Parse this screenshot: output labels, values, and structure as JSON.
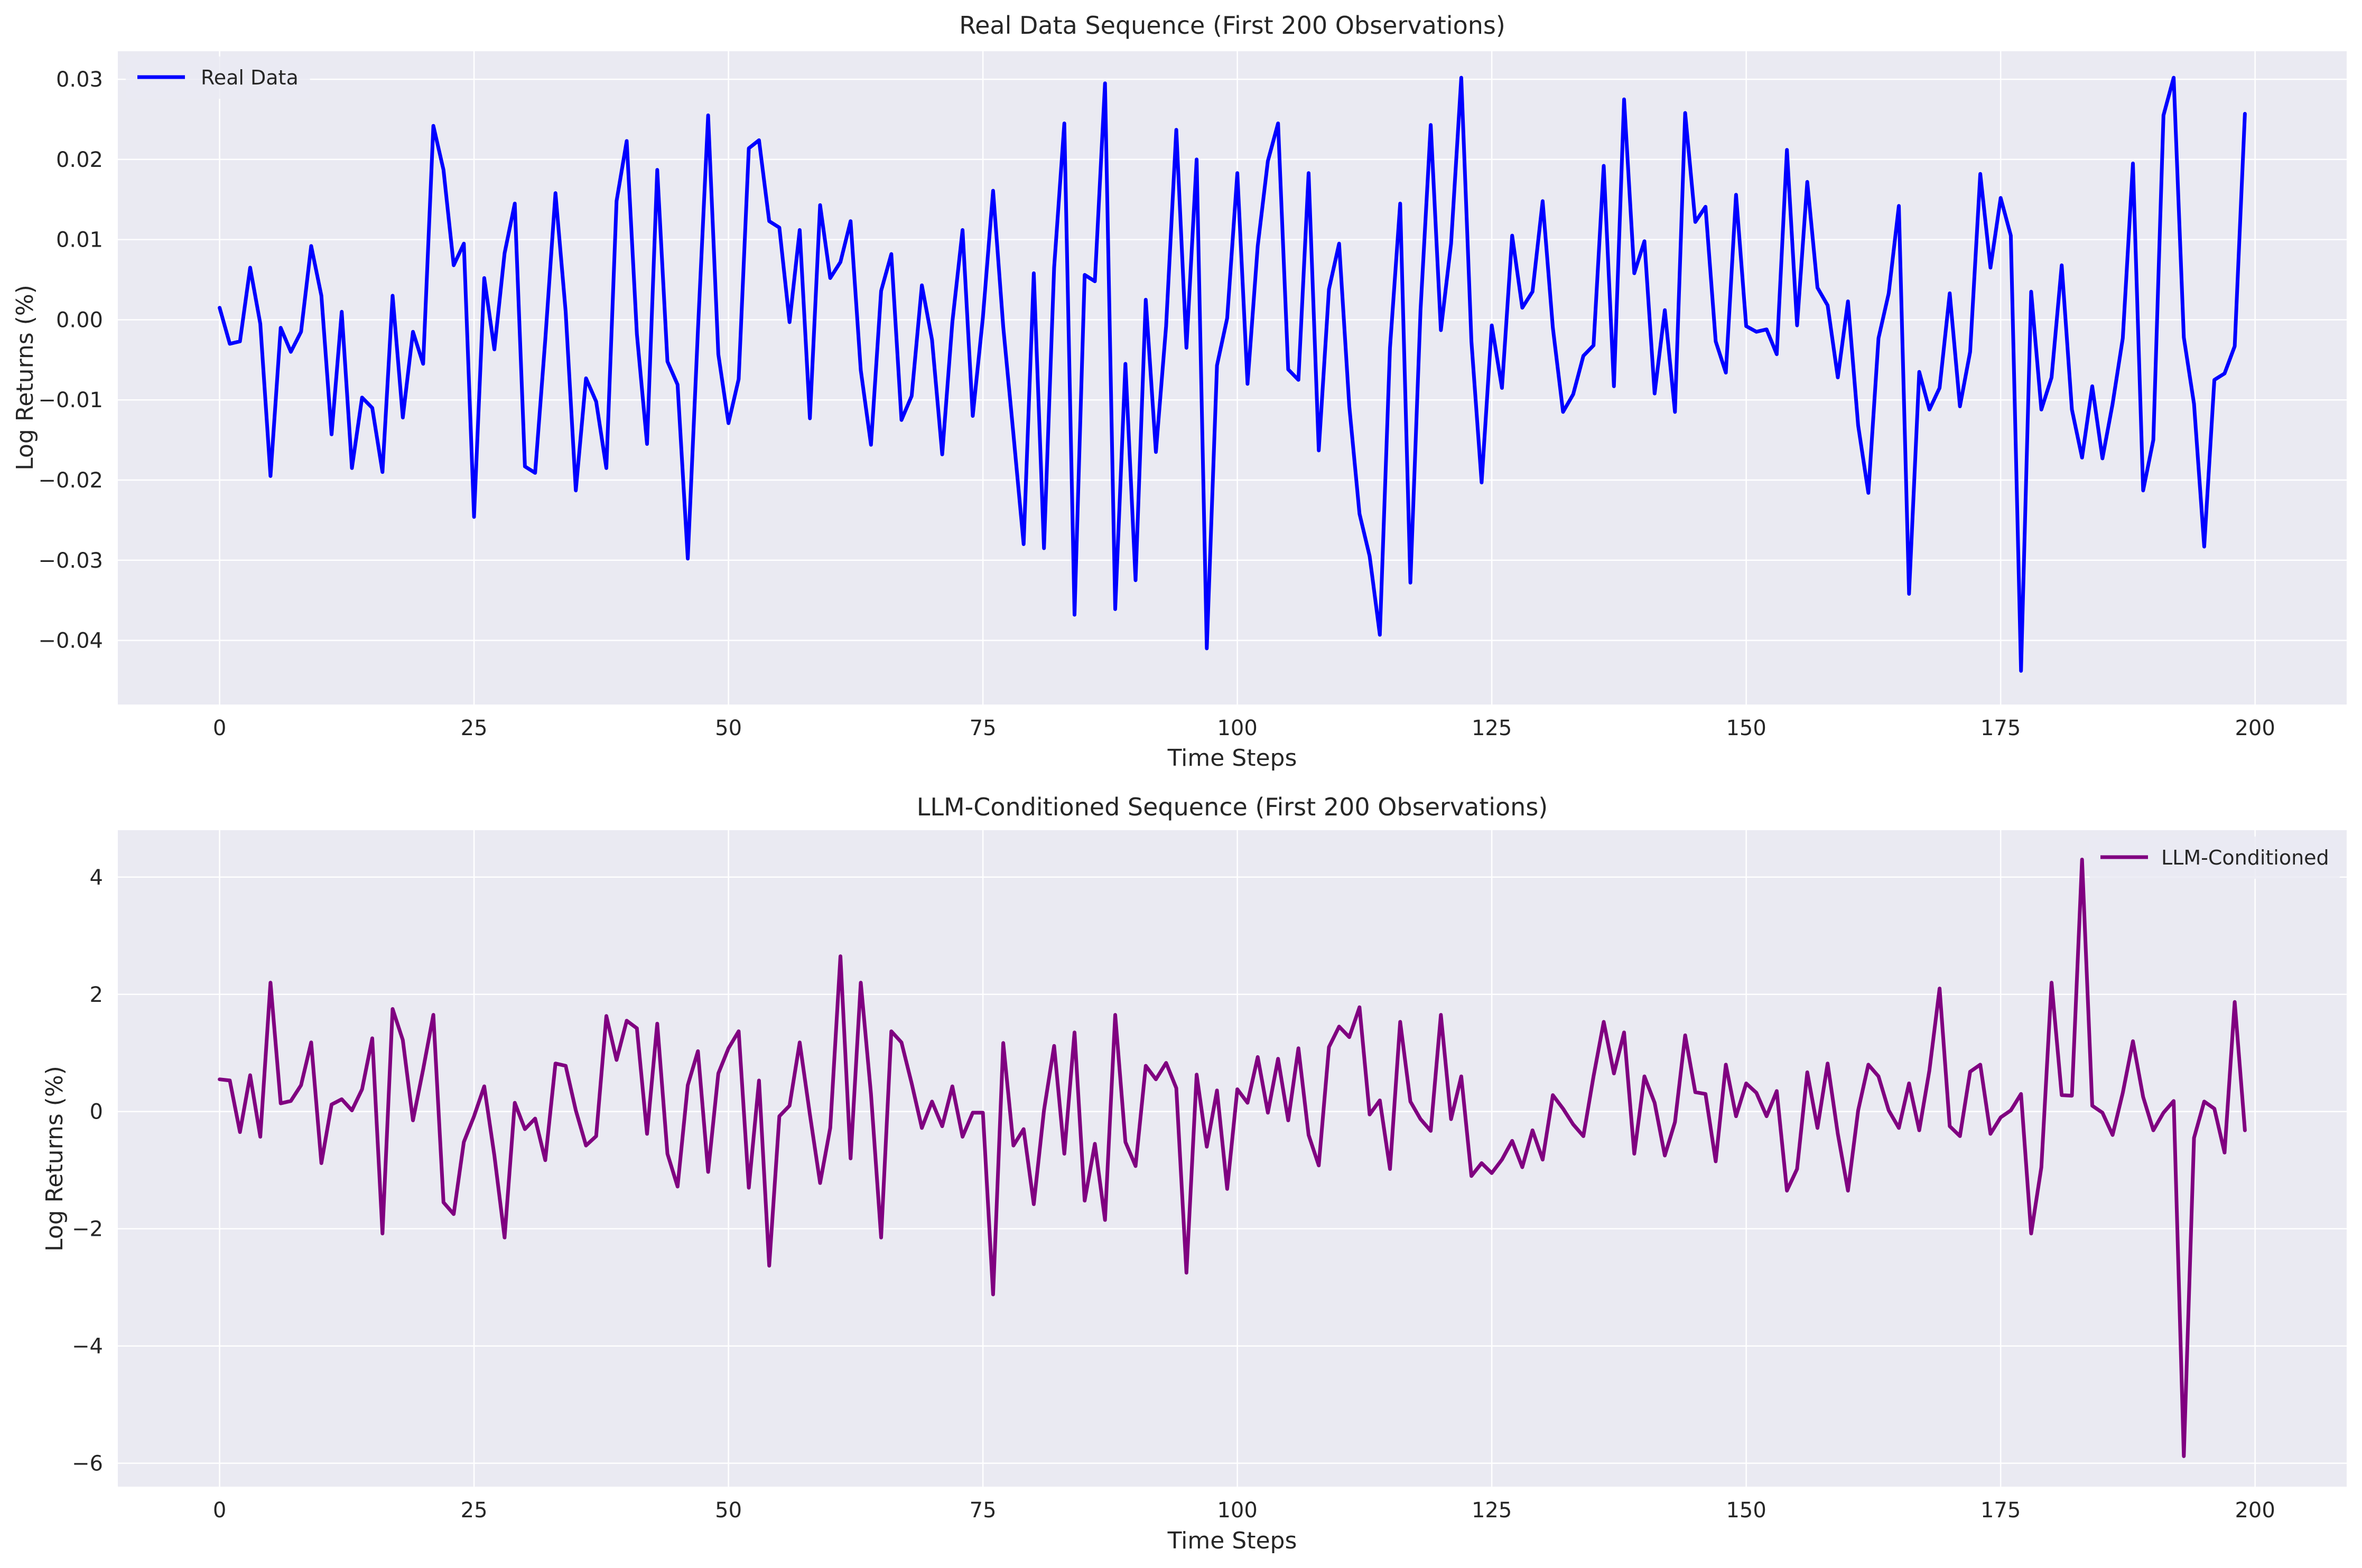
{
  "chart_data": [
    {
      "type": "line",
      "title": "Real Data Sequence (First 200 Observations)",
      "xlabel": "Time Steps",
      "ylabel": "Log Returns (%)",
      "xlim": [
        -10,
        209
      ],
      "ylim": [
        -0.048,
        0.0335
      ],
      "xticks": [
        0,
        25,
        50,
        75,
        100,
        125,
        150,
        175,
        200
      ],
      "yticks": [
        -0.04,
        -0.03,
        -0.02,
        -0.01,
        0.0,
        0.01,
        0.02,
        0.03
      ],
      "ytick_labels": [
        "−0.04",
        "−0.03",
        "−0.02",
        "−0.01",
        "0.00",
        "0.01",
        "0.02",
        "0.03"
      ],
      "grid": true,
      "legend_position": "upper-left",
      "series": [
        {
          "name": "Real Data",
          "color": "#0000ff",
          "values": [
            0.0015,
            -0.003,
            -0.0027,
            0.0065,
            -0.0005,
            -0.0195,
            -0.001,
            -0.004,
            -0.0015,
            0.0092,
            0.003,
            -0.0143,
            0.001,
            -0.0185,
            -0.0097,
            -0.011,
            -0.019,
            0.003,
            -0.0122,
            -0.0015,
            -0.0055,
            0.0242,
            0.0187,
            0.0068,
            0.0095,
            -0.0246,
            0.0052,
            -0.0037,
            0.0083,
            0.0145,
            -0.0183,
            -0.0191,
            -0.0025,
            0.0158,
            0.001,
            -0.0213,
            -0.0073,
            -0.0102,
            -0.0185,
            0.0148,
            0.0223,
            -0.0018,
            -0.0155,
            0.0187,
            -0.0052,
            -0.0081,
            -0.0298,
            -0.0013,
            0.0255,
            -0.0043,
            -0.0129,
            -0.0074,
            0.0214,
            0.0224,
            0.0123,
            0.0115,
            -0.0003,
            0.0112,
            -0.0123,
            0.0143,
            0.0052,
            0.0072,
            0.0123,
            -0.0063,
            -0.0156,
            0.0036,
            0.0082,
            -0.0125,
            -0.0095,
            0.0043,
            -0.0025,
            -0.0168,
            -0.0003,
            0.0112,
            -0.012,
            0.0003,
            0.0161,
            -0.0009,
            -0.0143,
            -0.028,
            0.0058,
            -0.0285,
            0.0065,
            0.0245,
            -0.0368,
            0.0056,
            0.0048,
            0.0295,
            -0.0361,
            -0.0055,
            -0.0325,
            0.0025,
            -0.0165,
            -0.0008,
            0.0237,
            -0.0035,
            0.02,
            -0.041,
            -0.0057,
            0.0002,
            0.0183,
            -0.008,
            0.0092,
            0.0198,
            0.0245,
            -0.0062,
            -0.0075,
            0.0183,
            -0.0163,
            0.0038,
            0.0095,
            -0.0108,
            -0.0242,
            -0.0295,
            -0.0393,
            -0.0035,
            0.0145,
            -0.0328,
            0.0012,
            0.0243,
            -0.0013,
            0.0095,
            0.0302,
            -0.0027,
            -0.0203,
            -0.0007,
            -0.0085,
            0.0105,
            0.0015,
            0.0035,
            0.0148,
            -0.001,
            -0.0115,
            -0.0093,
            -0.0045,
            -0.0032,
            0.0192,
            -0.0083,
            0.0275,
            0.0058,
            0.0098,
            -0.0092,
            0.0012,
            -0.0115,
            0.0258,
            0.0122,
            0.0141,
            -0.0027,
            -0.0066,
            0.0156,
            -0.0008,
            -0.0015,
            -0.0012,
            -0.0043,
            0.0212,
            -0.0007,
            0.0172,
            0.004,
            0.0018,
            -0.0072,
            0.0023,
            -0.0132,
            -0.0216,
            -0.0023,
            0.0033,
            0.0142,
            -0.0342,
            -0.0065,
            -0.0112,
            -0.0085,
            0.0033,
            -0.0108,
            -0.004,
            0.0182,
            0.0065,
            0.0152,
            0.0105,
            -0.0438,
            0.0035,
            -0.0112,
            -0.0072,
            0.0068,
            -0.0112,
            -0.0172,
            -0.0083,
            -0.0173,
            -0.0105,
            -0.0023,
            0.0195,
            -0.0213,
            -0.015,
            0.0255,
            0.0302,
            -0.0022,
            -0.0105,
            -0.0283,
            -0.0075,
            -0.0067,
            -0.0033,
            0.0257
          ]
        }
      ]
    },
    {
      "type": "line",
      "title": "LLM-Conditioned Sequence (First 200 Observations)",
      "xlabel": "Time Steps",
      "ylabel": "Log Returns (%)",
      "xlim": [
        -10,
        209
      ],
      "ylim": [
        -6.4,
        4.8
      ],
      "xticks": [
        0,
        25,
        50,
        75,
        100,
        125,
        150,
        175,
        200
      ],
      "yticks": [
        -6,
        -4,
        -2,
        0,
        2,
        4
      ],
      "ytick_labels": [
        "−6",
        "−4",
        "−2",
        "0",
        "2",
        "4"
      ],
      "grid": true,
      "legend_position": "upper-right",
      "series": [
        {
          "name": "LLM-Conditioned",
          "color": "#800080",
          "values": [
            0.55,
            0.53,
            -0.35,
            0.62,
            -0.43,
            2.2,
            0.14,
            0.18,
            0.45,
            1.18,
            -0.88,
            0.12,
            0.21,
            0.02,
            0.38,
            1.25,
            -2.08,
            1.75,
            1.22,
            -0.15,
            0.72,
            1.65,
            -1.55,
            -1.75,
            -0.52,
            -0.08,
            0.43,
            -0.75,
            -2.15,
            0.15,
            -0.3,
            -0.12,
            -0.83,
            0.82,
            0.78,
            0.02,
            -0.58,
            -0.42,
            1.63,
            0.88,
            1.55,
            1.42,
            -0.38,
            1.5,
            -0.72,
            -1.28,
            0.45,
            1.03,
            -1.03,
            0.65,
            1.08,
            1.37,
            -1.3,
            0.53,
            -2.63,
            -0.08,
            0.1,
            1.18,
            -0.05,
            -1.22,
            -0.28,
            2.65,
            -0.8,
            2.2,
            0.3,
            -2.15,
            1.37,
            1.18,
            0.48,
            -0.28,
            0.17,
            -0.25,
            0.43,
            -0.43,
            -0.02,
            -0.02,
            -3.12,
            1.17,
            -0.58,
            -0.3,
            -1.58,
            0.02,
            1.12,
            -0.72,
            1.35,
            -1.52,
            -0.55,
            -1.85,
            1.65,
            -0.52,
            -0.93,
            0.78,
            0.55,
            0.83,
            0.4,
            -2.75,
            0.63,
            -0.6,
            0.36,
            -1.32,
            0.38,
            0.15,
            0.93,
            -0.02,
            0.9,
            -0.15,
            1.08,
            -0.4,
            -0.92,
            1.1,
            1.45,
            1.27,
            1.78,
            -0.05,
            0.19,
            -0.98,
            1.53,
            0.17,
            -0.13,
            -0.33,
            1.65,
            -0.13,
            0.6,
            -1.1,
            -0.88,
            -1.05,
            -0.82,
            -0.5,
            -0.95,
            -0.32,
            -0.82,
            0.28,
            0.05,
            -0.22,
            -0.42,
            0.6,
            1.53,
            0.65,
            1.35,
            -0.72,
            0.6,
            0.15,
            -0.75,
            -0.18,
            1.3,
            0.33,
            0.3,
            -0.85,
            0.8,
            -0.08,
            0.48,
            0.32,
            -0.08,
            0.35,
            -1.35,
            -0.98,
            0.67,
            -0.28,
            0.82,
            -0.38,
            -1.35,
            0.02,
            0.8,
            0.6,
            0.02,
            -0.28,
            0.48,
            -0.32,
            0.7,
            2.1,
            -0.25,
            -0.42,
            0.68,
            0.8,
            -0.38,
            -0.1,
            0.02,
            0.3,
            -2.08,
            -0.95,
            2.2,
            0.28,
            0.27,
            4.3,
            0.1,
            -0.02,
            -0.4,
            0.32,
            1.2,
            0.25,
            -0.32,
            -0.02,
            0.18,
            -5.88,
            -0.45,
            0.17,
            0.05,
            -0.7,
            1.87,
            -0.32
          ]
        }
      ]
    }
  ]
}
